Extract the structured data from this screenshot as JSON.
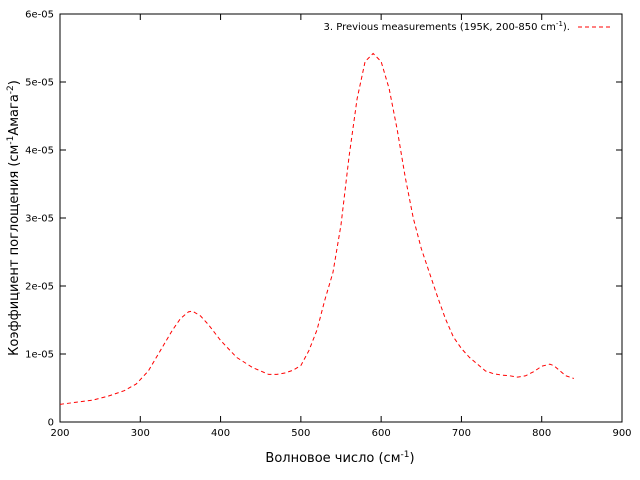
{
  "chart_data": {
    "type": "line",
    "xlabel": "Волновое число (см",
    "xlabel_sup": "-1",
    "xlabel_tail": ")",
    "ylabel": "Коэффициент поглощения (см",
    "ylabel_sup1": "-1",
    "ylabel_mid": "Амага",
    "ylabel_sup2": "-2",
    "ylabel_tail": ")",
    "xlim": [
      200,
      900
    ],
    "ylim": [
      0,
      6e-05
    ],
    "x_ticks": [
      200,
      300,
      400,
      500,
      600,
      700,
      800,
      900
    ],
    "x_tick_labels": [
      "200",
      "300",
      "400",
      "500",
      "600",
      "700",
      "800",
      "900"
    ],
    "y_ticks": [
      0,
      1e-05,
      2e-05,
      3e-05,
      4e-05,
      5e-05,
      6e-05
    ],
    "y_tick_labels": [
      "0",
      "1e-05",
      "2e-05",
      "3e-05",
      "4e-05",
      "5e-05",
      "6e-05"
    ],
    "grid": false,
    "legend_position": "top-right",
    "series": [
      {
        "name": "3. Previous measurements (195K, 200-850 cm",
        "name_sup": "-1",
        "name_tail": ").",
        "color": "#ff0000",
        "line_style": "dashed",
        "x": [
          200,
          220,
          240,
          260,
          280,
          295,
          310,
          320,
          330,
          340,
          350,
          360,
          365,
          375,
          385,
          400,
          420,
          440,
          460,
          470,
          480,
          490,
          500,
          510,
          520,
          530,
          540,
          550,
          560,
          570,
          580,
          590,
          600,
          610,
          620,
          630,
          640,
          650,
          660,
          670,
          680,
          690,
          700,
          710,
          720,
          730,
          740,
          750,
          760,
          770,
          780,
          790,
          800,
          810,
          815,
          820,
          830,
          840
        ],
        "y": [
          2.6e-06,
          2.9e-06,
          3.2e-06,
          3.8e-06,
          4.6e-06,
          5.6e-06,
          7.5e-06,
          9.5e-06,
          1.15e-05,
          1.35e-05,
          1.52e-05,
          1.62e-05,
          1.63e-05,
          1.56e-05,
          1.43e-05,
          1.2e-05,
          9.5e-06,
          8e-06,
          7e-06,
          7e-06,
          7.2e-06,
          7.6e-06,
          8.3e-06,
          1.05e-05,
          1.35e-05,
          1.8e-05,
          2.2e-05,
          2.9e-05,
          3.9e-05,
          4.75e-05,
          5.3e-05,
          5.42e-05,
          5.3e-05,
          4.9e-05,
          4.3e-05,
          3.6e-05,
          3e-05,
          2.55e-05,
          2.2e-05,
          1.85e-05,
          1.52e-05,
          1.25e-05,
          1.08e-05,
          9.5e-06,
          8.5e-06,
          7.5e-06,
          7.1e-06,
          6.9e-06,
          6.8e-06,
          6.6e-06,
          6.8e-06,
          7.4e-06,
          8.2e-06,
          8.5e-06,
          8.3e-06,
          7.8e-06,
          6.8e-06,
          6.4e-06
        ]
      }
    ]
  }
}
